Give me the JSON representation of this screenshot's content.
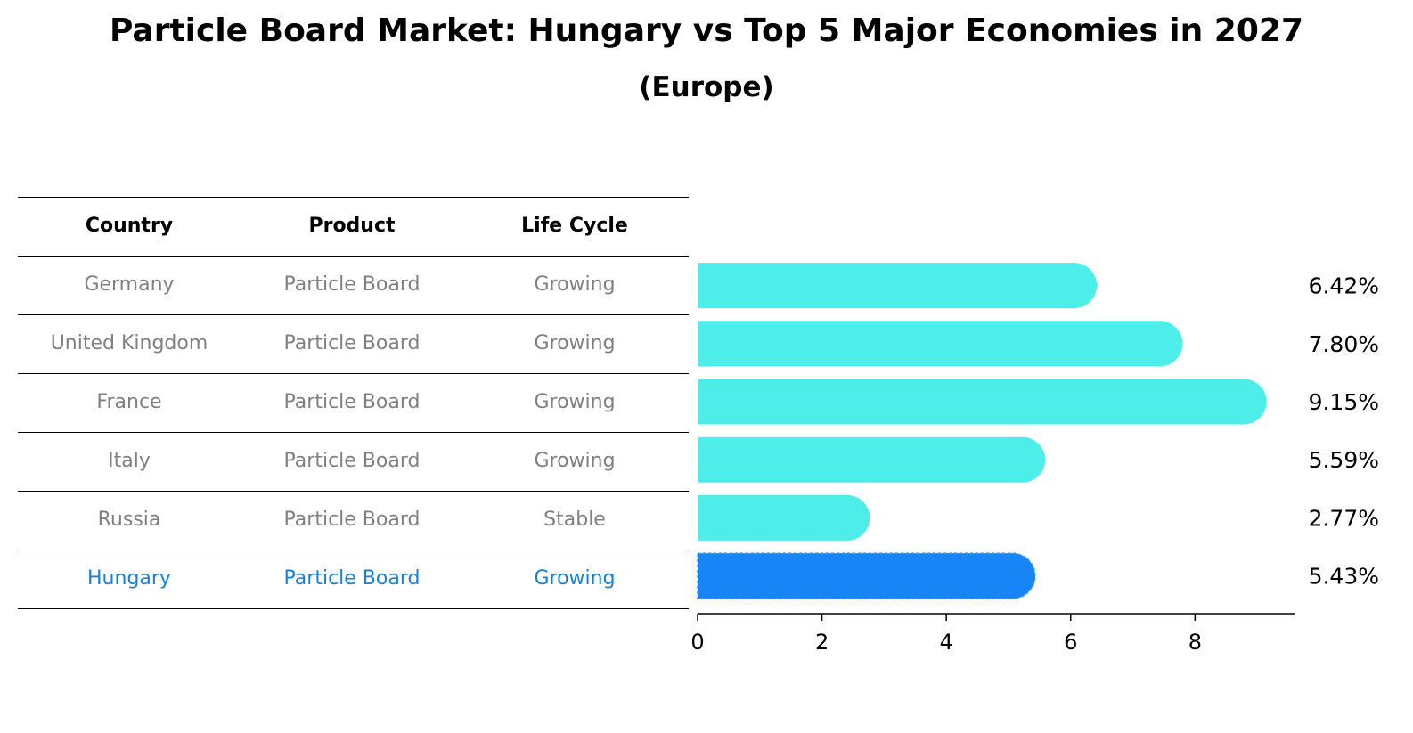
{
  "title": "Particle Board Market: Hungary vs Top 5 Major Economies in 2027",
  "subtitle": "(Europe)",
  "table": {
    "headers": [
      "Country",
      "Product",
      "Life Cycle"
    ],
    "rows": [
      {
        "country": "Germany",
        "product": "Particle Board",
        "life_cycle": "Growing"
      },
      {
        "country": "United Kingdom",
        "product": "Particle Board",
        "life_cycle": "Growing"
      },
      {
        "country": "France",
        "product": "Particle Board",
        "life_cycle": "Growing"
      },
      {
        "country": "Italy",
        "product": "Particle Board",
        "life_cycle": "Growing"
      },
      {
        "country": "Russia",
        "product": "Particle Board",
        "life_cycle": "Stable"
      },
      {
        "country": "Hungary",
        "product": "Particle Board",
        "life_cycle": "Growing"
      }
    ]
  },
  "colors": {
    "bar": "#4deeea",
    "highlight": "#1785f5",
    "row_text": "#808080",
    "highlight_text": "#1a80d6"
  },
  "chart_data": {
    "type": "bar",
    "orientation": "horizontal",
    "categories": [
      "Germany",
      "United Kingdom",
      "France",
      "Italy",
      "Russia",
      "Hungary"
    ],
    "values": [
      6.42,
      7.8,
      9.15,
      5.59,
      2.77,
      5.43
    ],
    "value_labels": [
      "6.42%",
      "7.80%",
      "9.15%",
      "5.59%",
      "2.77%",
      "5.43%"
    ],
    "highlight_category": "Hungary",
    "xlim": [
      0,
      9.6
    ],
    "xticks": [
      0,
      2,
      4,
      6,
      8
    ],
    "xtick_labels": [
      "0",
      "2",
      "4",
      "6",
      "8"
    ],
    "grid": false
  }
}
